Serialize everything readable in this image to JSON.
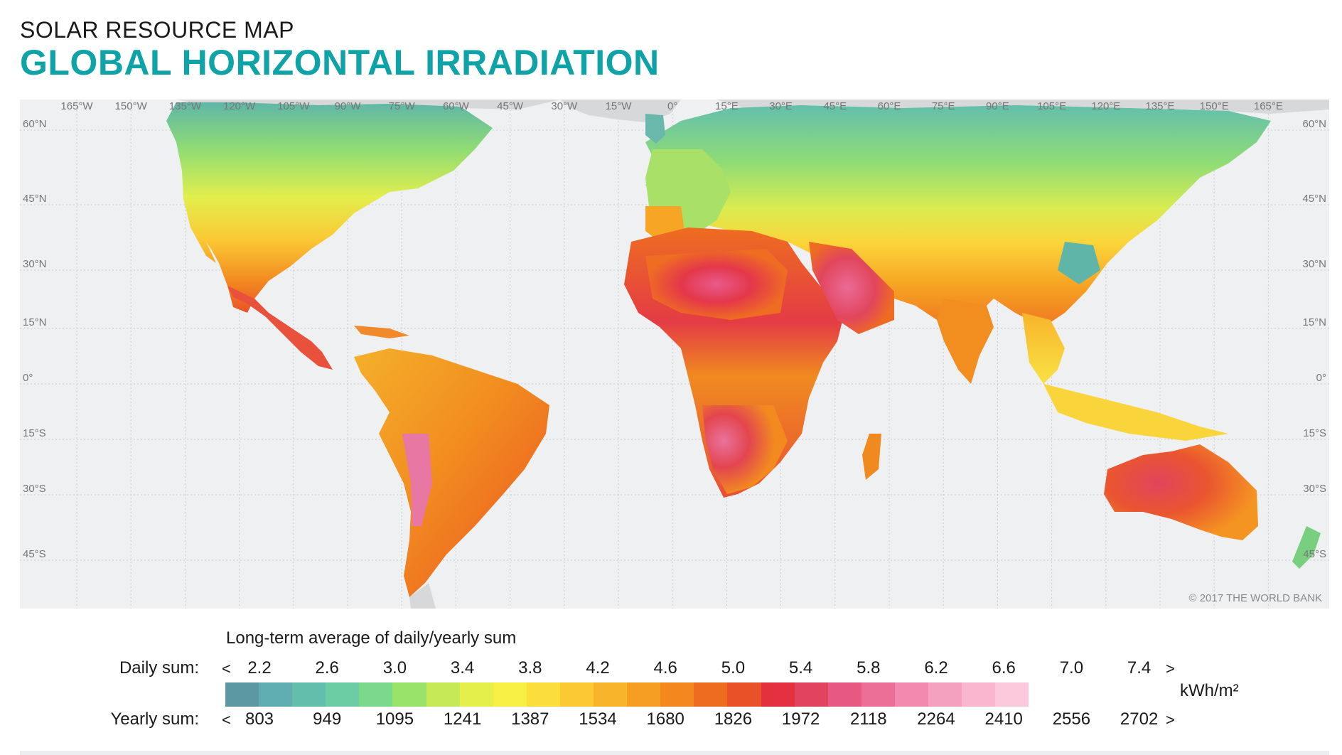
{
  "header": {
    "subtitle": "SOLAR RESOURCE MAP",
    "title": "GLOBAL HORIZONTAL IRRADIATION"
  },
  "map": {
    "longitude_labels": [
      "165°W",
      "150°W",
      "135°W",
      "120°W",
      "105°W",
      "90°W",
      "75°W",
      "60°W",
      "45°W",
      "30°W",
      "15°W",
      "0°",
      "15°E",
      "30°E",
      "45°E",
      "60°E",
      "75°E",
      "90°E",
      "105°E",
      "120°E",
      "135°E",
      "150°E",
      "165°E"
    ],
    "latitude_labels": [
      "60°N",
      "45°N",
      "30°N",
      "15°N",
      "0°",
      "15°S",
      "30°S",
      "45°S"
    ],
    "copyright": "© 2017 THE WORLD BANK"
  },
  "legend": {
    "caption": "Long-term average of daily/yearly sum",
    "daily_label": "Daily sum:",
    "yearly_label": "Yearly sum:",
    "less_than": "<",
    "greater_than": ">",
    "unit": "kWh/m²",
    "daily_ticks": [
      "2.2",
      "2.6",
      "3.0",
      "3.4",
      "3.8",
      "4.2",
      "4.6",
      "5.0",
      "5.4",
      "5.8",
      "6.2",
      "6.6",
      "7.0",
      "7.4"
    ],
    "yearly_ticks": [
      "803",
      "949",
      "1095",
      "1241",
      "1387",
      "1534",
      "1680",
      "1826",
      "1972",
      "2118",
      "2264",
      "2410",
      "2556",
      "2702"
    ],
    "colors": [
      "#5b98a3",
      "#5fadb0",
      "#63bfac",
      "#6ccda5",
      "#7ad98a",
      "#9ae36b",
      "#c5ea55",
      "#e5ef4c",
      "#f8ef45",
      "#fbdd3c",
      "#fbc934",
      "#f8b42b",
      "#f69e22",
      "#f4871e",
      "#ee6c20",
      "#e95228",
      "#e43140",
      "#e2445d",
      "#e75882",
      "#ec6f98",
      "#f18aae",
      "#f4a1c0",
      "#f8b7cf",
      "#fbc8dc"
    ]
  }
}
